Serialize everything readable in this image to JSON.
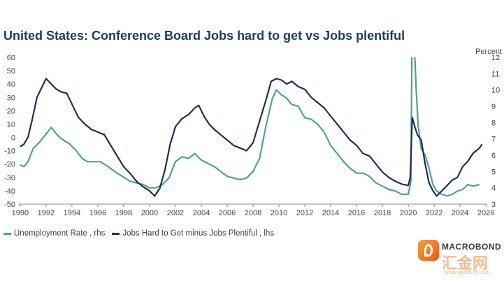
{
  "top_text": "",
  "title": "United States: Conference Board Jobs hard to get vs Jobs plentiful",
  "logo": {
    "text": "MACROBOND",
    "cn": "汇金网",
    "url": "www.gold678.com"
  },
  "colors": {
    "unemployment": "#4fa487",
    "jobs_hard": "#1f2f55",
    "title": "#1f3a5f",
    "axis": "#444444"
  },
  "chart_data": {
    "type": "line",
    "title": "United States: Conference Board Jobs hard to get vs Jobs plentiful",
    "right_axis_title": "Percent",
    "x_ticks": [
      "1990",
      "1992",
      "1994",
      "1996",
      "1998",
      "2000",
      "2002",
      "2004",
      "2006",
      "2008",
      "2010",
      "2012",
      "2014",
      "2016",
      "2018",
      "2020",
      "2022",
      "2024",
      "2026"
    ],
    "xlim": [
      1989.9,
      2026.1
    ],
    "left_axis": {
      "range": [
        -50,
        60
      ],
      "ticks": [
        "60",
        "50",
        "40",
        "30",
        "20",
        "10",
        "0",
        "-10",
        "-20",
        "-30",
        "-40",
        "-50"
      ]
    },
    "right_axis": {
      "range": [
        3,
        12
      ],
      "ticks": [
        "12",
        "11",
        "10",
        "9",
        "8",
        "7",
        "6",
        "5",
        "4",
        "3"
      ]
    },
    "grid": false,
    "legend_placement": "bottom-left",
    "series": [
      {
        "name": "Unemployment Rate , rhs",
        "axis": "right",
        "points": [
          [
            1990.0,
            5.4
          ],
          [
            1990.3,
            5.3
          ],
          [
            1990.6,
            5.6
          ],
          [
            1991.0,
            6.4
          ],
          [
            1991.5,
            6.8
          ],
          [
            1992.0,
            7.3
          ],
          [
            1992.4,
            7.7
          ],
          [
            1992.8,
            7.3
          ],
          [
            1993.2,
            7.0
          ],
          [
            1993.8,
            6.7
          ],
          [
            1994.3,
            6.3
          ],
          [
            1994.8,
            5.8
          ],
          [
            1995.2,
            5.6
          ],
          [
            1995.8,
            5.6
          ],
          [
            1996.2,
            5.6
          ],
          [
            1996.8,
            5.3
          ],
          [
            1997.3,
            5.0
          ],
          [
            1997.9,
            4.7
          ],
          [
            1998.5,
            4.4
          ],
          [
            1999.0,
            4.3
          ],
          [
            1999.5,
            4.2
          ],
          [
            2000.0,
            4.0
          ],
          [
            2000.5,
            4.0
          ],
          [
            2001.0,
            4.2
          ],
          [
            2001.5,
            4.6
          ],
          [
            2002.0,
            5.6
          ],
          [
            2002.5,
            5.9
          ],
          [
            2003.0,
            5.8
          ],
          [
            2003.5,
            6.1
          ],
          [
            2004.0,
            5.7
          ],
          [
            2004.5,
            5.5
          ],
          [
            2005.0,
            5.3
          ],
          [
            2005.5,
            5.0
          ],
          [
            2006.0,
            4.7
          ],
          [
            2006.5,
            4.6
          ],
          [
            2007.0,
            4.5
          ],
          [
            2007.5,
            4.6
          ],
          [
            2008.0,
            5.0
          ],
          [
            2008.5,
            5.8
          ],
          [
            2009.0,
            7.8
          ],
          [
            2009.5,
            9.5
          ],
          [
            2009.8,
            10.0
          ],
          [
            2010.2,
            9.7
          ],
          [
            2010.6,
            9.5
          ],
          [
            2011.0,
            9.1
          ],
          [
            2011.5,
            9.0
          ],
          [
            2012.0,
            8.3
          ],
          [
            2012.5,
            8.2
          ],
          [
            2013.0,
            7.9
          ],
          [
            2013.5,
            7.4
          ],
          [
            2014.0,
            6.6
          ],
          [
            2014.5,
            6.1
          ],
          [
            2015.0,
            5.6
          ],
          [
            2015.5,
            5.2
          ],
          [
            2016.0,
            4.9
          ],
          [
            2016.5,
            4.9
          ],
          [
            2017.0,
            4.7
          ],
          [
            2017.5,
            4.3
          ],
          [
            2018.0,
            4.1
          ],
          [
            2018.5,
            3.9
          ],
          [
            2019.0,
            3.8
          ],
          [
            2019.5,
            3.6
          ],
          [
            2020.0,
            3.6
          ],
          [
            2020.2,
            4.4
          ],
          [
            2020.3,
            14.7
          ],
          [
            2020.45,
            13.2
          ],
          [
            2020.6,
            10.2
          ],
          [
            2020.75,
            7.9
          ],
          [
            2021.0,
            6.4
          ],
          [
            2021.3,
            6.0
          ],
          [
            2021.6,
            5.2
          ],
          [
            2021.9,
            4.2
          ],
          [
            2022.2,
            3.8
          ],
          [
            2022.6,
            3.6
          ],
          [
            2023.0,
            3.5
          ],
          [
            2023.4,
            3.6
          ],
          [
            2023.8,
            3.8
          ],
          [
            2024.2,
            3.9
          ],
          [
            2024.6,
            4.2
          ],
          [
            2025.0,
            4.1
          ],
          [
            2025.5,
            4.2
          ]
        ]
      },
      {
        "name": "Jobs Hard to Get minus Jobs Plentiful , lhs",
        "axis": "left",
        "points": [
          [
            1990.0,
            -7
          ],
          [
            1990.3,
            -5
          ],
          [
            1990.6,
            0
          ],
          [
            1990.9,
            12
          ],
          [
            1991.3,
            30
          ],
          [
            1991.7,
            38
          ],
          [
            1992.0,
            44
          ],
          [
            1992.4,
            40
          ],
          [
            1992.8,
            36
          ],
          [
            1993.2,
            34
          ],
          [
            1993.6,
            33
          ],
          [
            1994.0,
            25
          ],
          [
            1994.5,
            15
          ],
          [
            1995.0,
            10
          ],
          [
            1995.5,
            6
          ],
          [
            1996.0,
            4
          ],
          [
            1996.5,
            2
          ],
          [
            1997.0,
            -6
          ],
          [
            1997.5,
            -14
          ],
          [
            1998.0,
            -22
          ],
          [
            1998.5,
            -27
          ],
          [
            1999.0,
            -33
          ],
          [
            1999.5,
            -37
          ],
          [
            2000.0,
            -40
          ],
          [
            2000.4,
            -44
          ],
          [
            2000.8,
            -38
          ],
          [
            2001.2,
            -24
          ],
          [
            2001.6,
            -5
          ],
          [
            2002.0,
            8
          ],
          [
            2002.5,
            14
          ],
          [
            2003.0,
            17
          ],
          [
            2003.5,
            22
          ],
          [
            2003.8,
            24
          ],
          [
            2004.2,
            16
          ],
          [
            2004.6,
            10
          ],
          [
            2005.0,
            6
          ],
          [
            2005.5,
            2
          ],
          [
            2006.0,
            -2
          ],
          [
            2006.5,
            -6
          ],
          [
            2007.0,
            -8
          ],
          [
            2007.5,
            -10
          ],
          [
            2008.0,
            -4
          ],
          [
            2008.5,
            12
          ],
          [
            2009.0,
            28
          ],
          [
            2009.4,
            42
          ],
          [
            2009.8,
            44
          ],
          [
            2010.2,
            43
          ],
          [
            2010.6,
            40
          ],
          [
            2011.0,
            42
          ],
          [
            2011.5,
            38
          ],
          [
            2012.0,
            36
          ],
          [
            2012.5,
            30
          ],
          [
            2013.0,
            26
          ],
          [
            2013.5,
            22
          ],
          [
            2014.0,
            16
          ],
          [
            2014.5,
            10
          ],
          [
            2015.0,
            4
          ],
          [
            2015.5,
            -2
          ],
          [
            2016.0,
            -6
          ],
          [
            2016.5,
            -12
          ],
          [
            2017.0,
            -14
          ],
          [
            2017.5,
            -20
          ],
          [
            2018.0,
            -26
          ],
          [
            2018.5,
            -30
          ],
          [
            2019.0,
            -33
          ],
          [
            2019.5,
            -35
          ],
          [
            2020.0,
            -36
          ],
          [
            2020.15,
            -30
          ],
          [
            2020.3,
            15
          ],
          [
            2020.5,
            8
          ],
          [
            2020.7,
            2
          ],
          [
            2021.0,
            -2
          ],
          [
            2021.3,
            -20
          ],
          [
            2021.6,
            -34
          ],
          [
            2021.9,
            -40
          ],
          [
            2022.2,
            -44
          ],
          [
            2022.6,
            -40
          ],
          [
            2023.0,
            -36
          ],
          [
            2023.4,
            -32
          ],
          [
            2023.8,
            -30
          ],
          [
            2024.2,
            -22
          ],
          [
            2024.6,
            -18
          ],
          [
            2025.0,
            -12
          ],
          [
            2025.5,
            -8
          ],
          [
            2025.7,
            -5
          ]
        ]
      }
    ]
  }
}
